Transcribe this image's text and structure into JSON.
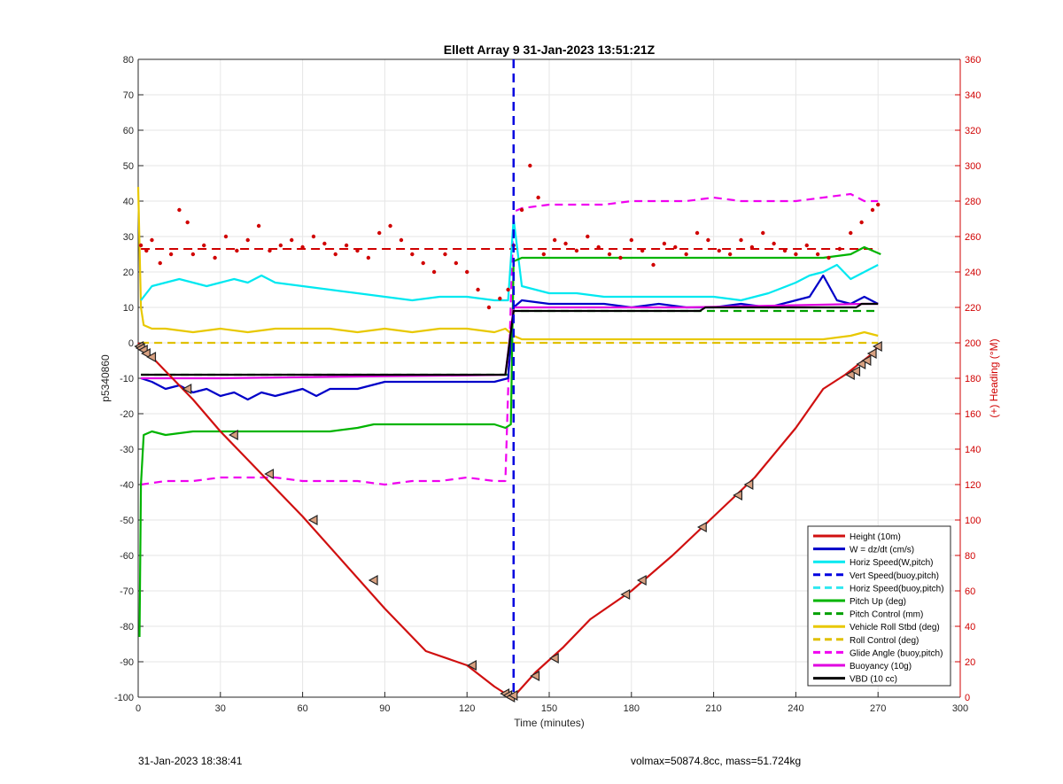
{
  "chart_data": {
    "type": "line",
    "title": "Ellett Array 9 31-Jan-2023 13:51:21Z",
    "xlabel": "Time (minutes)",
    "ylabel": "p5340860",
    "y2label": "(+) Heading (°M)",
    "xlim": [
      0,
      300
    ],
    "ylim": [
      -100,
      80
    ],
    "y2lim": [
      0,
      360
    ],
    "xticks": [
      "0",
      "30",
      "60",
      "90",
      "120",
      "150",
      "180",
      "210",
      "240",
      "270",
      "300"
    ],
    "yticks": [
      "80",
      "70",
      "60",
      "50",
      "40",
      "30",
      "20",
      "10",
      "0",
      "-10",
      "-20",
      "-30",
      "-40",
      "-50",
      "-60",
      "-70",
      "-80",
      "-90",
      "-100"
    ],
    "y2ticks": [
      "360",
      "340",
      "320",
      "300",
      "280",
      "260",
      "240",
      "220",
      "200",
      "180",
      "160",
      "140",
      "120",
      "100",
      "80",
      "60",
      "40",
      "20",
      "0"
    ],
    "grid": true,
    "legend_position": "bottom-right",
    "vertical_line_x": 137,
    "colors": {
      "height": "#d01010",
      "w": "#0000c8",
      "horiz": "#00e8f0",
      "vert_buoy": "#0000e0",
      "horiz_buoy": "#30e8f0",
      "pitch": "#00b400",
      "pitch_control": "#00a000",
      "roll": "#e8c800",
      "roll_control": "#e0c000",
      "glide": "#f000f0",
      "buoyancy": "#e000e0",
      "vbd": "#000000",
      "heading": "#d00000",
      "heading_axis": "#d00000"
    },
    "series": [
      {
        "name": "Height (10m)",
        "key": "height",
        "style": "solid",
        "x": [
          0,
          2,
          5,
          10,
          20,
          30,
          45,
          60,
          75,
          90,
          105,
          120,
          130,
          134,
          136,
          138,
          145,
          155,
          165,
          180,
          195,
          210,
          225,
          240,
          250,
          258,
          263,
          268,
          271
        ],
        "y": [
          0,
          -2,
          -4,
          -8,
          -16,
          -25,
          -37,
          -49,
          -62,
          -75,
          -87,
          -91,
          -97,
          -99,
          -100,
          -99,
          -93,
          -86,
          -78,
          -70,
          -60,
          -49,
          -38,
          -24,
          -13,
          -9,
          -6,
          -3,
          0
        ]
      },
      {
        "name": "W = dz/dt (cm/s)",
        "key": "w",
        "style": "solid",
        "x": [
          1,
          5,
          10,
          15,
          20,
          25,
          30,
          35,
          40,
          45,
          50,
          55,
          60,
          65,
          70,
          80,
          90,
          100,
          110,
          120,
          130,
          135,
          137,
          140,
          150,
          160,
          170,
          180,
          190,
          200,
          210,
          220,
          230,
          240,
          245,
          250,
          255,
          260,
          265,
          270
        ],
        "y": [
          -10,
          -11,
          -13,
          -12,
          -14,
          -13,
          -15,
          -14,
          -16,
          -14,
          -15,
          -14,
          -13,
          -15,
          -13,
          -13,
          -11,
          -11,
          -11,
          -11,
          -11,
          -10,
          10,
          12,
          11,
          11,
          11,
          10,
          11,
          10,
          10,
          11,
          10,
          12,
          13,
          19,
          12,
          11,
          13,
          11
        ]
      },
      {
        "name": "Horiz Speed(W,pitch)",
        "key": "horiz",
        "style": "solid",
        "x": [
          1,
          5,
          10,
          15,
          20,
          25,
          30,
          35,
          40,
          45,
          50,
          60,
          70,
          80,
          90,
          100,
          110,
          120,
          130,
          135,
          137,
          140,
          150,
          160,
          170,
          180,
          190,
          200,
          210,
          220,
          230,
          240,
          245,
          250,
          255,
          260,
          265,
          270
        ],
        "y": [
          12,
          16,
          17,
          18,
          17,
          16,
          17,
          18,
          17,
          19,
          17,
          16,
          15,
          14,
          13,
          12,
          13,
          13,
          12,
          12,
          35,
          16,
          14,
          14,
          13,
          13,
          13,
          13,
          13,
          12,
          14,
          17,
          19,
          20,
          22,
          18,
          20,
          22
        ]
      },
      {
        "name": "Vert Speed(buoy,pitch)",
        "key": "vert_buoy",
        "style": "dashed",
        "x": [],
        "y": []
      },
      {
        "name": "Horiz Speed(buoy,pitch)",
        "key": "horiz_buoy",
        "style": "dashed",
        "x": [],
        "y": []
      },
      {
        "name": "Pitch Up (deg)",
        "key": "pitch",
        "style": "solid",
        "x": [
          0.5,
          1,
          2,
          5,
          10,
          20,
          30,
          40,
          50,
          60,
          70,
          80,
          86,
          90,
          100,
          110,
          120,
          130,
          134,
          136,
          137,
          140,
          150,
          160,
          170,
          180,
          190,
          200,
          210,
          220,
          230,
          240,
          250,
          260,
          265,
          268,
          271
        ],
        "y": [
          -83,
          -40,
          -26,
          -25,
          -26,
          -25,
          -25,
          -25,
          -25,
          -25,
          -25,
          -24,
          -23,
          -23,
          -23,
          -23,
          -23,
          -23,
          -24,
          -23,
          23,
          24,
          24,
          24,
          24,
          24,
          24,
          24,
          24,
          24,
          24,
          24,
          24,
          25,
          27,
          26,
          25
        ]
      },
      {
        "name": "Pitch Control (mm)",
        "key": "pitch_control",
        "style": "dashed",
        "x": [
          1,
          134,
          135,
          137,
          270
        ],
        "y": [
          -9,
          -9,
          -9,
          9,
          9
        ]
      },
      {
        "name": "Vehicle Roll Stbd (deg)",
        "key": "roll",
        "style": "solid",
        "x": [
          0,
          1,
          2,
          5,
          10,
          20,
          30,
          40,
          50,
          60,
          70,
          80,
          90,
          100,
          110,
          120,
          130,
          134,
          137,
          140,
          150,
          160,
          170,
          180,
          190,
          200,
          210,
          220,
          230,
          240,
          250,
          260,
          265,
          270
        ],
        "y": [
          44,
          10,
          5,
          4,
          4,
          3,
          4,
          3,
          4,
          4,
          4,
          3,
          4,
          3,
          4,
          4,
          3,
          4,
          2,
          1,
          1,
          1,
          1,
          1,
          1,
          1,
          1,
          1,
          1,
          1,
          1,
          2,
          3,
          2
        ]
      },
      {
        "name": "Roll Control (deg)",
        "key": "roll_control",
        "style": "dashed",
        "x": [
          1,
          270
        ],
        "y": [
          0,
          0
        ]
      },
      {
        "name": "Glide Angle (buoy,pitch)",
        "key": "glide",
        "style": "dashed",
        "x": [
          1,
          10,
          20,
          30,
          40,
          50,
          60,
          70,
          80,
          90,
          100,
          110,
          120,
          130,
          134,
          137,
          140,
          150,
          160,
          170,
          180,
          190,
          200,
          210,
          220,
          230,
          240,
          250,
          260,
          265,
          270
        ],
        "y": [
          -40,
          -39,
          -39,
          -38,
          -38,
          -38,
          -39,
          -39,
          -39,
          -40,
          -39,
          -39,
          -38,
          -39,
          -39,
          37,
          38,
          39,
          39,
          39,
          40,
          40,
          40,
          41,
          40,
          40,
          40,
          41,
          42,
          40,
          40
        ]
      },
      {
        "name": "Buoyancy (10g)",
        "key": "buoyancy",
        "style": "solid",
        "x": [
          1,
          30,
          60,
          90,
          120,
          134,
          137,
          200,
          265,
          270
        ],
        "y": [
          -10,
          -10,
          -9.7,
          -9.4,
          -9.2,
          -9,
          10,
          10,
          11,
          11
        ]
      },
      {
        "name": "VBD (10 cc)",
        "key": "vbd",
        "style": "solid",
        "x": [
          1,
          134,
          137,
          140,
          205,
          207,
          262,
          264,
          270
        ],
        "y": [
          -9,
          -9,
          9,
          9,
          9,
          10,
          10,
          11,
          11
        ]
      }
    ],
    "heading_series": {
      "name": "Heading (°M)",
      "axis": "right",
      "style": "dotted",
      "x": [
        1,
        3,
        5,
        8,
        12,
        15,
        18,
        20,
        24,
        28,
        32,
        36,
        40,
        44,
        48,
        52,
        56,
        60,
        64,
        68,
        72,
        76,
        80,
        84,
        88,
        92,
        96,
        100,
        104,
        108,
        112,
        116,
        120,
        124,
        128,
        132,
        135,
        137,
        140,
        143,
        146,
        148,
        152,
        156,
        160,
        164,
        168,
        172,
        176,
        180,
        184,
        188,
        192,
        196,
        200,
        204,
        208,
        212,
        216,
        220,
        224,
        228,
        232,
        236,
        240,
        244,
        248,
        252,
        256,
        260,
        264,
        268,
        270
      ],
      "y": [
        255,
        252,
        258,
        245,
        250,
        275,
        268,
        250,
        255,
        248,
        260,
        252,
        258,
        266,
        252,
        255,
        258,
        254,
        260,
        256,
        250,
        255,
        252,
        248,
        262,
        266,
        258,
        250,
        245,
        240,
        250,
        245,
        240,
        230,
        220,
        225,
        230,
        255,
        275,
        300,
        282,
        250,
        258,
        256,
        252,
        260,
        254,
        250,
        248,
        258,
        252,
        244,
        256,
        254,
        250,
        262,
        258,
        252,
        250,
        258,
        254,
        262,
        256,
        252,
        250,
        255,
        250,
        248,
        253,
        262,
        268,
        275,
        278
      ]
    },
    "heading_reference": {
      "name": "Heading (°M) target",
      "style": "dashed",
      "x": [
        1,
        270
      ],
      "y": [
        253,
        253
      ]
    },
    "markers": {
      "name": "Height markers",
      "x": [
        0.5,
        1,
        2,
        3,
        5,
        18,
        35,
        48,
        64,
        86,
        122,
        134,
        135,
        136,
        137,
        145,
        152,
        178,
        184,
        206,
        219,
        223,
        260,
        262,
        264,
        266,
        268,
        270
      ],
      "y": [
        -1,
        -1.5,
        -2,
        -3,
        -4,
        -13,
        -26,
        -37,
        -50,
        -67,
        -91,
        -99,
        -99.5,
        -100,
        -99.5,
        -94,
        -89,
        -71,
        -67,
        -52,
        -43,
        -40,
        -9,
        -8,
        -6,
        -5,
        -3,
        -1
      ]
    }
  },
  "footer": {
    "left": "31-Jan-2023 18:38:41",
    "right": "volmax=50874.8cc, mass=51.724kg"
  }
}
